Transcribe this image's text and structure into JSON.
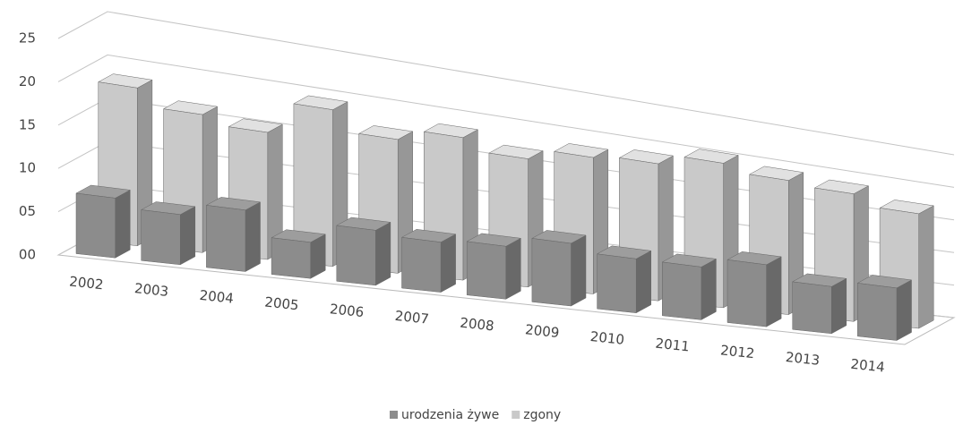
{
  "chart_data": {
    "type": "bar3d",
    "categories": [
      "2002",
      "2003",
      "2004",
      "2005",
      "2006",
      "2007",
      "2008",
      "2009",
      "2010",
      "2011",
      "2012",
      "2013",
      "2014"
    ],
    "series": [
      {
        "name": "urodzenia żywe",
        "color": "#8c8c8c",
        "values": [
          7,
          6,
          7.5,
          4.5,
          7,
          6.5,
          7,
          8.5,
          7.5,
          7.5,
          9,
          7,
          8
        ]
      },
      {
        "name": "zgony",
        "color": "#c9c9c9",
        "values": [
          18.5,
          16.5,
          15.5,
          19.5,
          17,
          18.5,
          17,
          18.5,
          19,
          20.5,
          19.5,
          19,
          17.5
        ]
      }
    ],
    "ylim": [
      0,
      25
    ],
    "yticks": [
      {
        "value": 0,
        "label": "00"
      },
      {
        "value": 5,
        "label": "05"
      },
      10,
      15,
      20,
      25
    ],
    "grid": true,
    "legend": "bottom"
  }
}
